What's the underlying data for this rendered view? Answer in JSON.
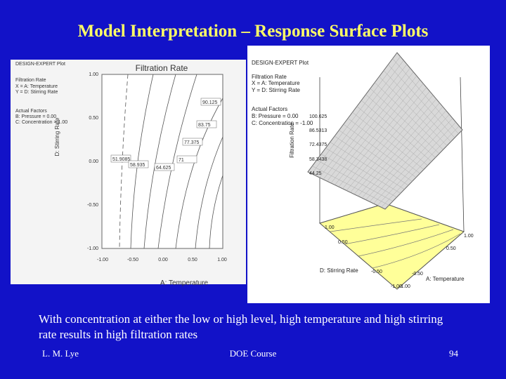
{
  "title": "Model Interpretation – Response Surface Plots",
  "left_plot": {
    "header": [
      "DESIGN-EXPERT Plot",
      "Filtration Rate",
      "X = A: Temperature",
      "Y = D: Stirring Rate",
      "Actual Factors",
      "B: Pressure = 0.00",
      "C: Concentration = 1.00"
    ],
    "title": "Filtration Rate",
    "contour_labels": [
      "90.125",
      "83.75",
      "77.375",
      "71",
      "51.9085",
      "58.935",
      "64.625"
    ],
    "y_ticks": [
      "1.00",
      "0.50",
      "0.00",
      "-0.50",
      "-1.00"
    ],
    "x_ticks": [
      "-1.00",
      "-0.50",
      "0.00",
      "0.50",
      "1.00"
    ],
    "x_label": "A: Temperature",
    "y_label": "D: Stirring Rate"
  },
  "right_plot": {
    "header": [
      "DESIGN-EXPERT Plot",
      "Filtration Rate",
      "X = A: Temperature",
      "Y = D: Stirring Rate",
      "Actual Factors",
      "B: Pressure = 0.00",
      "C: Concentration = -1.00"
    ],
    "z_ticks": [
      "100.625",
      "86.5313",
      "72.4375",
      "58.3438",
      "44.25"
    ],
    "z_label": "Filtration Rate",
    "d_ticks": [
      "1.00",
      "0.50",
      "-0.50",
      "-1.00"
    ],
    "a_ticks": [
      "1.00",
      "0.50",
      "-0.50",
      "-1.00"
    ],
    "d_label": "D: Stirring Rate",
    "a_label": "A: Temperature"
  },
  "body": "With concentration at either the low or high level, high temperature and high stirring rate results in high filtration rates",
  "footer": {
    "author": "L. M. Lye",
    "course": "DOE Course",
    "page": "94"
  }
}
